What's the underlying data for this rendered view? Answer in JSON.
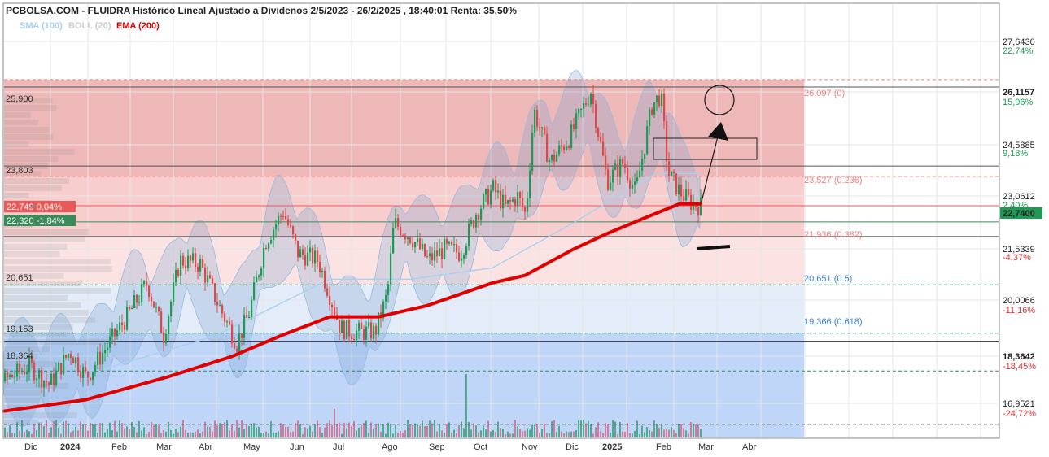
{
  "header": {
    "title": "PCBOLSA.COM - FLUIDRA Histórico Lineal Ajustado a Dividenos 2/5/2023 - 26/2/2025 , 18:40:01 Renta: 35,50%",
    "legend": [
      {
        "label": "SMA (100)",
        "color": "#a8d0f0"
      },
      {
        "label": "BOLL (20)",
        "color": "#cccccc"
      },
      {
        "label": "EMA (200)",
        "color": "#e00000"
      }
    ]
  },
  "y_axis": {
    "ticks": [
      {
        "price": "27,6430",
        "pct": "22,74%",
        "pct_color": "#1a9a50",
        "bold": false
      },
      {
        "price": "26,1157",
        "pct": "15,96%",
        "pct_color": "#1a9a50",
        "bold": true
      },
      {
        "price": "24,5885",
        "pct": "9,18%",
        "pct_color": "#1a9a50",
        "bold": false
      },
      {
        "price": "23,0612",
        "pct": "2,40%",
        "pct_color": "#1a9a50",
        "bold": false
      },
      {
        "price": "21,5339",
        "pct": "-4,37%",
        "pct_color": "#e03030",
        "bold": false
      },
      {
        "price": "20,0066",
        "pct": "-11,16%",
        "pct_color": "#e03030",
        "bold": false
      },
      {
        "price": "18,3642",
        "pct": "-18,45%",
        "pct_color": "#e03030",
        "bold": true
      },
      {
        "price": "16,9521",
        "pct": "-24,72%",
        "pct_color": "#e03030",
        "bold": false
      }
    ],
    "last_price": "22,7400",
    "last_price_color": "#1f9a55"
  },
  "x_axis": {
    "ticks": [
      "Dic",
      "2024",
      "Feb",
      "Mar",
      "Abr",
      "May",
      "Jun",
      "Jul",
      "Ago",
      "Sep",
      "Oct",
      "Nov",
      "Dic",
      "2025",
      "Feb",
      "Mar",
      "Abr"
    ],
    "bold": [
      "2024",
      "2025"
    ]
  },
  "left_levels": [
    {
      "label": "25,900"
    },
    {
      "label": "23,803"
    },
    {
      "label": "20,651"
    },
    {
      "label": "19,153"
    },
    {
      "label": "18,364"
    }
  ],
  "markers": [
    {
      "label": "22,749  0,04%",
      "bg": "#e85a5a"
    },
    {
      "label": "22,320  -1,84%",
      "bg": "#3a8a5a"
    }
  ],
  "fib_levels": [
    {
      "label": "26,097 (0)",
      "color": "#f08080"
    },
    {
      "label": "23,527 (0.236)",
      "color": "#f08080"
    },
    {
      "label": "21,936 (0.382)",
      "color": "#f08080"
    },
    {
      "label": "20,651 (0.5)",
      "color": "#3a80d8"
    },
    {
      "label": "19,366 (0.618)",
      "color": "#3a80d8"
    }
  ],
  "chart_data": {
    "type": "line",
    "title": "PCBOLSA.COM - FLUIDRA Histórico Lineal Ajustado a Dividenos 2/5/2023 - 26/2/2025 , 18:40:01 Renta: 35,50%",
    "x": [
      "Dic",
      "2024",
      "Feb",
      "Mar",
      "Abr",
      "May",
      "Jun",
      "Jul",
      "Ago",
      "Sep",
      "Oct",
      "Nov",
      "Dic",
      "2025",
      "Feb",
      "Mar",
      "Abr"
    ],
    "y_range": [
      16.6,
      28.1
    ],
    "price_anchors": [
      [
        0,
        18.1
      ],
      [
        30,
        18.5
      ],
      [
        55,
        18.0
      ],
      [
        80,
        18.9
      ],
      [
        100,
        18.2
      ],
      [
        125,
        19.0
      ],
      [
        150,
        19.8
      ],
      [
        175,
        20.7
      ],
      [
        195,
        19.3
      ],
      [
        215,
        21.3
      ],
      [
        240,
        21.2
      ],
      [
        265,
        20.0
      ],
      [
        285,
        19.1
      ],
      [
        300,
        19.9
      ],
      [
        320,
        21.8
      ],
      [
        342,
        22.6
      ],
      [
        360,
        21.5
      ],
      [
        385,
        21.3
      ],
      [
        405,
        20.0
      ],
      [
        412,
        19.5
      ],
      [
        430,
        19.4
      ],
      [
        455,
        19.4
      ],
      [
        470,
        20.4
      ],
      [
        478,
        22.3
      ],
      [
        500,
        21.9
      ],
      [
        520,
        21.3
      ],
      [
        540,
        21.6
      ],
      [
        560,
        21.5
      ],
      [
        580,
        22.6
      ],
      [
        600,
        23.2
      ],
      [
        615,
        22.7
      ],
      [
        630,
        23.0
      ],
      [
        640,
        22.5
      ],
      [
        650,
        25.3
      ],
      [
        670,
        23.9
      ],
      [
        695,
        24.6
      ],
      [
        720,
        25.8
      ],
      [
        740,
        23.4
      ],
      [
        760,
        23.9
      ],
      [
        775,
        23.1
      ],
      [
        795,
        25.4
      ],
      [
        806,
        25.7
      ],
      [
        815,
        23.6
      ],
      [
        830,
        23.1
      ],
      [
        845,
        22.8
      ],
      [
        857,
        22.74
      ]
    ],
    "series": [
      {
        "name": "SMA (100)",
        "values": [
          [
            0,
            18.1
          ],
          [
            120,
            18.4
          ],
          [
            260,
            19.3
          ],
          [
            400,
            20.8
          ],
          [
            500,
            20.8
          ],
          [
            600,
            21.1
          ],
          [
            700,
            22.3
          ],
          [
            800,
            23.6
          ],
          [
            856,
            23.6
          ]
        ]
      },
      {
        "name": "EMA (200)",
        "values": [
          [
            0,
            17.3
          ],
          [
            100,
            17.6
          ],
          [
            200,
            18.2
          ],
          [
            280,
            18.75
          ],
          [
            340,
            19.3
          ],
          [
            400,
            19.8
          ],
          [
            460,
            19.8
          ],
          [
            520,
            20.1
          ],
          [
            600,
            20.7
          ],
          [
            640,
            20.9
          ],
          [
            700,
            21.6
          ],
          [
            740,
            22.0
          ],
          [
            790,
            22.45
          ],
          [
            830,
            22.8
          ],
          [
            856,
            22.8
          ]
        ]
      }
    ],
    "horizontal_levels": [
      25.9,
      23.803,
      22.749,
      22.32,
      21.936,
      20.651,
      19.153,
      18.364
    ],
    "fibonacci": [
      {
        "level": "0",
        "value": 26.097
      },
      {
        "level": "0.236",
        "value": 23.527
      },
      {
        "level": "0.382",
        "value": 21.936
      },
      {
        "level": "0.5",
        "value": 20.651
      },
      {
        "level": "0.618",
        "value": 19.366
      }
    ],
    "last_close": 22.74,
    "change_pct": 35.5
  }
}
